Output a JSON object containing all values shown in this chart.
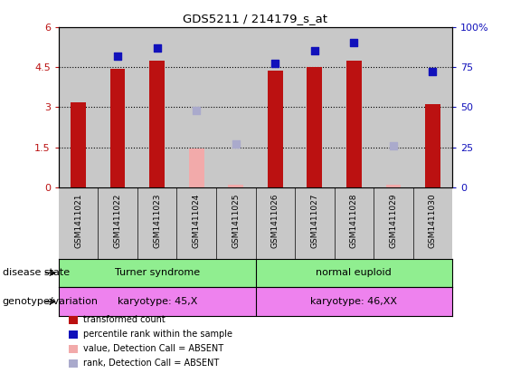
{
  "title": "GDS5211 / 214179_s_at",
  "samples": [
    "GSM1411021",
    "GSM1411022",
    "GSM1411023",
    "GSM1411024",
    "GSM1411025",
    "GSM1411026",
    "GSM1411027",
    "GSM1411028",
    "GSM1411029",
    "GSM1411030"
  ],
  "transformed_count": [
    3.2,
    4.45,
    4.75,
    null,
    null,
    4.35,
    4.5,
    4.75,
    null,
    3.12
  ],
  "transformed_count_absent": [
    null,
    null,
    null,
    1.45,
    0.12,
    null,
    null,
    null,
    0.1,
    null
  ],
  "percentile_rank": [
    null,
    82,
    87,
    null,
    null,
    77,
    85,
    90,
    null,
    72
  ],
  "percentile_rank_absent": [
    null,
    null,
    null,
    48,
    27,
    null,
    null,
    null,
    26,
    null
  ],
  "ylim_left": [
    0,
    6
  ],
  "ylim_right": [
    0,
    100
  ],
  "yticks_left": [
    0,
    1.5,
    3.0,
    4.5,
    6
  ],
  "yticks_right": [
    0,
    25,
    50,
    75,
    100
  ],
  "ytick_labels_left": [
    "0",
    "1.5",
    "3",
    "4.5",
    "6"
  ],
  "ytick_labels_right": [
    "0",
    "25",
    "50",
    "75",
    "100%"
  ],
  "bar_color": "#bb1111",
  "bar_absent_color": "#f2aaaa",
  "dot_color": "#1111bb",
  "dot_absent_color": "#aaaacc",
  "disease_state_labels": [
    "Turner syndrome",
    "normal euploid"
  ],
  "disease_state_color": "#90ee90",
  "genotype_labels": [
    "karyotype: 45,X",
    "karyotype: 46,XX"
  ],
  "genotype_color": "#ee82ee",
  "bg_color": "#c8c8c8",
  "bar_width": 0.38,
  "dot_size": 28,
  "legend_items": [
    {
      "label": "transformed count",
      "color": "#bb1111"
    },
    {
      "label": "percentile rank within the sample",
      "color": "#1111bb"
    },
    {
      "label": "value, Detection Call = ABSENT",
      "color": "#f2aaaa"
    },
    {
      "label": "rank, Detection Call = ABSENT",
      "color": "#aaaacc"
    }
  ],
  "row_labels": [
    "disease state",
    "genotype/variation"
  ]
}
